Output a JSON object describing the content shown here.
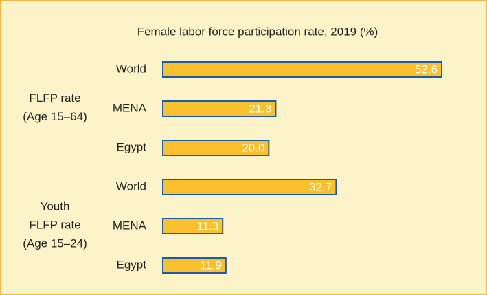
{
  "chart_data": {
    "type": "bar",
    "orientation": "horizontal",
    "title": "Female labor force participation rate, 2019 (%)",
    "color": "#fbc02d",
    "edge_color": "#1f5aa6",
    "groups": [
      {
        "label": [
          "FLFP rate",
          "(Age 15–64)"
        ],
        "categories": [
          "World",
          "MENA",
          "Egypt"
        ],
        "values": [
          52.6,
          21.3,
          20.0
        ],
        "value_labels": [
          "52.6",
          "21.3",
          "20.0"
        ]
      },
      {
        "label": [
          "Youth",
          "FLFP rate",
          "(Age 15–24)"
        ],
        "categories": [
          "World",
          "MENA",
          "Egypt"
        ],
        "values": [
          32.7,
          11.3,
          11.9
        ],
        "value_labels": [
          "32.7",
          "11.3",
          "11.9"
        ]
      }
    ]
  }
}
